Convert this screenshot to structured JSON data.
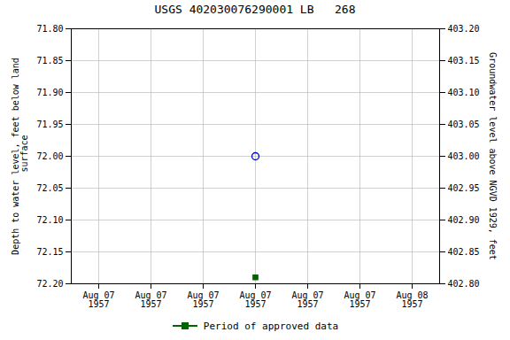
{
  "chart_data": {
    "type": "scatter",
    "title": "USGS 402030076290001 LB   268",
    "ylabel": "Depth to water level, feet below land\n surface",
    "y2label": "Groundwater level above NGVD 1929, feet",
    "categories": [
      "Aug 07\n1957",
      "Aug 07\n1957",
      "Aug 07\n1957",
      "Aug 07\n1957",
      "Aug 07\n1957",
      "Aug 07\n1957",
      "Aug 08\n1957"
    ],
    "series": [
      {
        "color": "#0000cc",
        "marker": "circle_open",
        "values": [
          null,
          null,
          null,
          72.0,
          null,
          null,
          null
        ]
      },
      {
        "name": "Period of approved data",
        "color": "#006400",
        "marker": "square",
        "values": [
          null,
          null,
          null,
          72.19,
          null,
          null,
          null
        ]
      }
    ],
    "ylim": [
      72.2,
      71.8
    ],
    "yticks": [
      {
        "value": 71.8,
        "label": "71.80"
      },
      {
        "value": 71.85,
        "label": "71.85"
      },
      {
        "value": 71.9,
        "label": "71.90"
      },
      {
        "value": 71.95,
        "label": "71.95"
      },
      {
        "value": 72.0,
        "label": "72.00"
      },
      {
        "value": 72.05,
        "label": "72.05"
      },
      {
        "value": 72.1,
        "label": "72.10"
      },
      {
        "value": 72.15,
        "label": "72.15"
      },
      {
        "value": 72.2,
        "label": "72.20"
      }
    ],
    "y2lim": [
      402.8,
      403.2
    ],
    "y2ticks": [
      {
        "value": 402.8,
        "label": "402.80"
      },
      {
        "value": 402.85,
        "label": "402.85"
      },
      {
        "value": 402.9,
        "label": "402.90"
      },
      {
        "value": 402.95,
        "label": "402.95"
      },
      {
        "value": 403.0,
        "label": "403.00"
      },
      {
        "value": 403.05,
        "label": "403.05"
      },
      {
        "value": 403.1,
        "label": "403.10"
      },
      {
        "value": 403.15,
        "label": "403.15"
      },
      {
        "value": 403.2,
        "label": "403.20"
      }
    ],
    "grid": true,
    "legend": "bottom"
  }
}
